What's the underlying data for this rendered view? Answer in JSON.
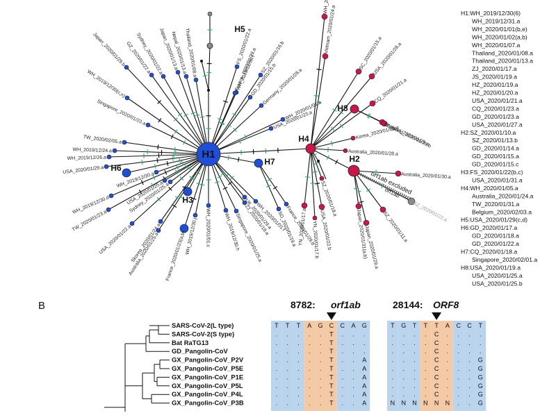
{
  "network": {
    "hubs": [
      {
        "id": "H1",
        "label": "H1"
      },
      {
        "id": "H2",
        "label": "H2"
      },
      {
        "id": "H3",
        "label": "H3"
      },
      {
        "id": "H4",
        "label": "H4"
      },
      {
        "id": "H5",
        "label": "H5"
      },
      {
        "id": "H6",
        "label": "H6"
      },
      {
        "id": "H7",
        "label": "H7"
      },
      {
        "id": "H8",
        "label": "H8"
      }
    ],
    "tips": [
      "Japan_2020/01/29.b",
      "GZ_2020/01/22.a",
      "Sydney_2020/01/22.a",
      "Japan_2020/01/13.a",
      "Nepal_2020/01/13.a",
      "Thailand_2020/01/08.a",
      "FS_2020/01/22.a",
      "WH_2019/12/30.f",
      "France_2020/01/29.a",
      "SZ_2020/01/16.b",
      "GD_2020/01/15.b",
      "Germany_2020/01/28.a",
      "WH_2019/12/30(c,n)",
      "Singapore_2020/01/23.a",
      "WH_2020/01/01.a",
      "USA_2020/01/23.a",
      "TW_2020/02/05.a",
      "WH_2019/12/24.a",
      "WH_2019/12/26.a",
      "USA_2020/01/29.a",
      "WH_2019/12/30.a",
      "WH_2019/12/30.d",
      "USA_2020/01/25.a",
      "TW_2020/01/23.a",
      "Sydney_2020/01/25.a",
      "USA_2020/01/22.a",
      "Skorea_2020/01/24.a",
      "Australia_2020/01/25.a",
      "WH_2019/12/30.j",
      "France_2020/01/23(a,b)",
      "WH_2020/01/01.c",
      "WH_2019/12/30.h",
      "Singapore_2020/01/25.a",
      "ZJ_2020/01/18.a",
      "UK_2020/01/29.a",
      "WH_2020/01/01.f",
      "SD_2020/01/19.a",
      "France_2020/01/29.b",
      "YN_2020/01/17.a",
      "USA_2020/01/22.b",
      "Japan_2020/01/31(a,b)",
      "Japan_2020/01/29.a",
      "SZ_2020/01/11.a",
      "Australia_2020/01/30.a",
      "SZ_2020/01/22.a",
      "Korea_2020/01/25.a",
      "Australia_2020/01/28.a",
      "England_2020/01/29.a",
      "England_2020/01/29.b",
      "CQ_2020/01/21.a",
      "USA_2020/01/28.a",
      "SC_2020/01/15.a",
      "Vietnam_2020/01/24.a",
      "WH_2020/01/26.a",
      "SZ_2020/01/18.a",
      "YN_2020/01/17.b"
    ],
    "annotation": "orf1ab excluded",
    "orf_label": "orf1ab"
  },
  "legend": {
    "lines": [
      "H1:WH_2019/12/30(6)",
      "WH_2019/12/31.a",
      "WH_2020/01/01(b,e)",
      "WH_2020/01/02(a,b)",
      "WH_2020/01/07.a",
      "Thailand_2020/01/08.a",
      "Thailand_2020/01/13.a",
      "ZJ_2020/01/17.a",
      "JS_2020/01/19.a",
      "HZ_2020/01/19.a",
      "HZ_2020/01/20.a",
      "USA_2020/01/21.a",
      "CQ_2020/01/23.a",
      "GD_2020/01/23.a",
      "USA_2020/01/27.a",
      "H2:SZ_2020/01/10.a",
      "SZ_2020/01/13.b",
      "GD_2020/01/14.a",
      "GD_2020/01/15.a",
      "GD_2020/01/15.c",
      "H3:FS_2020/01/22(b,c)",
      "USA_2020/01/31.a",
      "H4:WH_2020/01/05.a",
      "Australia_2020/01/24.a",
      "TW_2020/01/31.a",
      "Belgium_2020/02/03.a",
      "H5:USA_2020/01/29(c,d)",
      "H6:GD_2020/01/17.a",
      "GD_2020/01/18.a",
      "GD_2020/01/22.a",
      "H7:CQ_2020/01/18.a",
      "Singapore_2020/02/01.a",
      "H8:USA_2020/01/19.a",
      "USA_2020/01/25.a",
      "USA_2020/01/25.b"
    ]
  },
  "panel_b": {
    "label": "B",
    "site1": {
      "num": "8782:",
      "gene": "orf1ab"
    },
    "site2": {
      "num": "28144:",
      "gene": "ORF8"
    },
    "taxa": [
      {
        "name": "SARS-CoV-2(L type)",
        "s1": [
          "T",
          "T",
          "T",
          "A",
          "G",
          "C",
          "C",
          "A",
          "G"
        ],
        "s2": [
          "T",
          "G",
          "T",
          "T",
          "T",
          "A",
          "C",
          "C",
          "T"
        ]
      },
      {
        "name": "SARS-CoV-2(S type)",
        "s1": [
          ".",
          ".",
          ".",
          ".",
          ".",
          "T",
          ".",
          ".",
          "."
        ],
        "s2": [
          ".",
          ".",
          ".",
          ".",
          "C",
          ".",
          ".",
          ".",
          "."
        ]
      },
      {
        "name": "Bat RaTG13",
        "s1": [
          ".",
          ".",
          ".",
          ".",
          ".",
          "T",
          ".",
          ".",
          "."
        ],
        "s2": [
          ".",
          ".",
          ".",
          ".",
          "C",
          ".",
          ".",
          ".",
          "."
        ]
      },
      {
        "name": "GD_Pangolin-CoV",
        "s1": [
          ".",
          ".",
          ".",
          ".",
          ".",
          "T",
          ".",
          ".",
          "."
        ],
        "s2": [
          ".",
          ".",
          ".",
          ".",
          "C",
          ".",
          ".",
          ".",
          "."
        ]
      },
      {
        "name": "GX_Pangolin-CoV_P2V",
        "s1": [
          ".",
          ".",
          ".",
          ".",
          ".",
          "T",
          ".",
          ".",
          "A"
        ],
        "s2": [
          ".",
          ".",
          ".",
          ".",
          "C",
          ".",
          ".",
          ".",
          "G"
        ]
      },
      {
        "name": "GX_Pangolin-CoV_P5E",
        "s1": [
          ".",
          ".",
          ".",
          ".",
          ".",
          "T",
          ".",
          ".",
          "A"
        ],
        "s2": [
          ".",
          ".",
          ".",
          ".",
          "C",
          ".",
          ".",
          ".",
          "G"
        ]
      },
      {
        "name": "GX_Pangolin-CoV_P1E",
        "s1": [
          ".",
          ".",
          ".",
          ".",
          ".",
          "T",
          ".",
          ".",
          "A"
        ],
        "s2": [
          ".",
          ".",
          ".",
          ".",
          "C",
          ".",
          ".",
          ".",
          "G"
        ]
      },
      {
        "name": "GX_Pangolin-CoV_P5L",
        "s1": [
          ".",
          ".",
          ".",
          ".",
          ".",
          "T",
          ".",
          ".",
          "A"
        ],
        "s2": [
          ".",
          ".",
          ".",
          ".",
          "C",
          ".",
          ".",
          ".",
          "G"
        ]
      },
      {
        "name": "GX_Pangolin-CoV_P4L",
        "s1": [
          ".",
          ".",
          ".",
          ".",
          ".",
          "T",
          ".",
          ".",
          "A"
        ],
        "s2": [
          ".",
          ".",
          ".",
          ".",
          "C",
          ".",
          ".",
          ".",
          "G"
        ]
      },
      {
        "name": "GX_Pangolin-CoV_P3B",
        "s1": [
          ".",
          ".",
          ".",
          ".",
          ".",
          "T",
          ".",
          ".",
          "A"
        ],
        "s2": [
          "N",
          "N",
          "N",
          "N",
          "N",
          "N",
          ".",
          ".",
          "G"
        ]
      }
    ]
  },
  "colors": {
    "blue_node": "#1f4fd8",
    "red_node": "#c8174a",
    "tick": "#2db07a",
    "gray_node": "#8a8a8a",
    "cell_blue": "#b9d4ec",
    "cell_orange": "#f3c9a6",
    "edge": "#111111"
  }
}
